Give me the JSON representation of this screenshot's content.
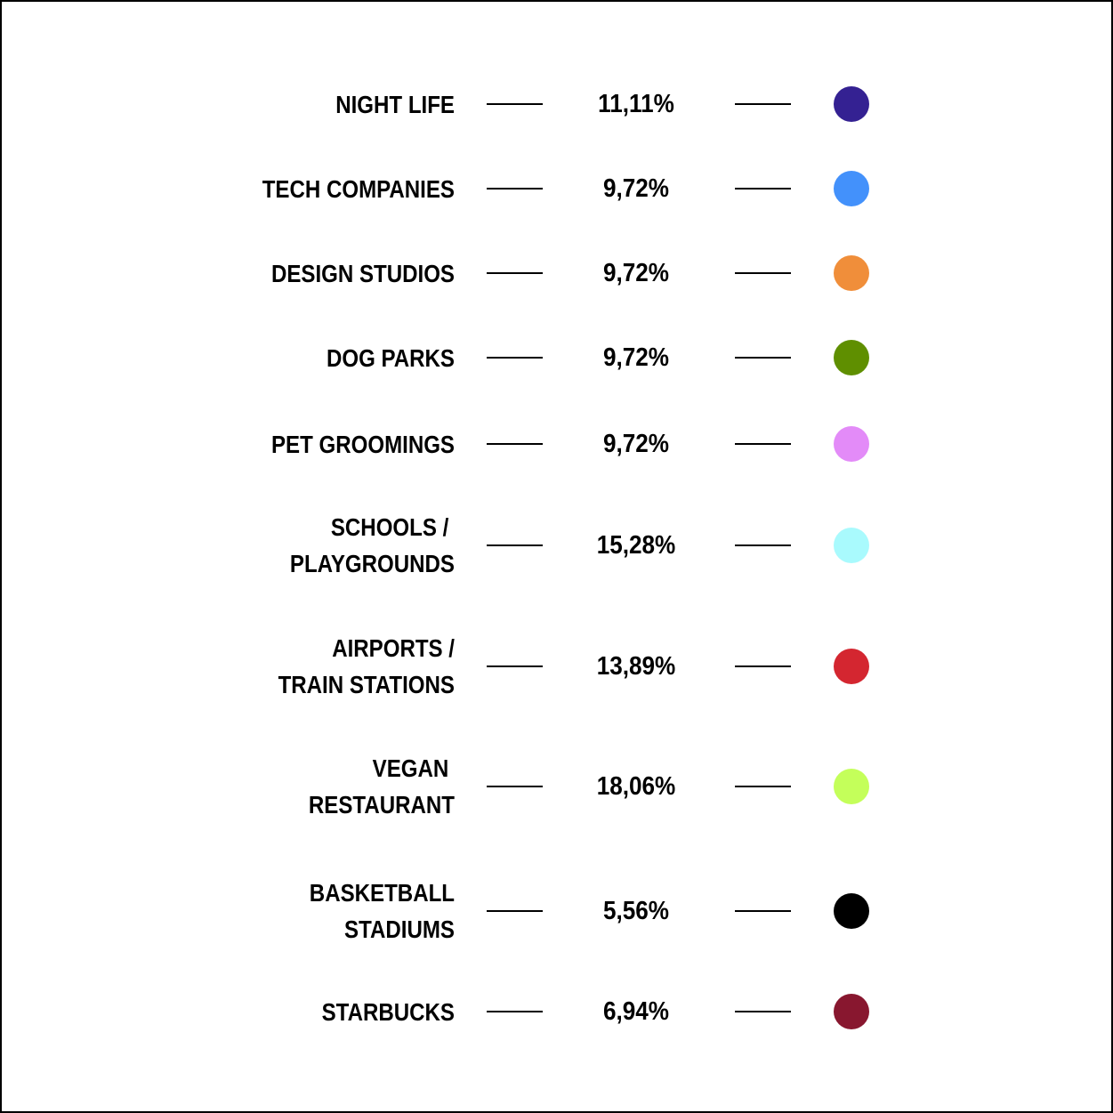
{
  "chart_data": {
    "type": "table",
    "rows": [
      {
        "label_lines": [
          "NIGHT LIFE"
        ],
        "value": 11.11,
        "value_label": "11,11%",
        "color": "#342192"
      },
      {
        "label_lines": [
          "TECH COMPANIES"
        ],
        "value": 9.72,
        "value_label": "9,72%",
        "color": "#4391FB"
      },
      {
        "label_lines": [
          "DESIGN STUDIOS"
        ],
        "value": 9.72,
        "value_label": "9,72%",
        "color": "#F08E3A"
      },
      {
        "label_lines": [
          "DOG PARKS"
        ],
        "value": 9.72,
        "value_label": "9,72%",
        "color": "#5F8F00"
      },
      {
        "label_lines": [
          "PET GROOMINGS"
        ],
        "value": 9.72,
        "value_label": "9,72%",
        "color": "#E38BF8"
      },
      {
        "label_lines": [
          "SCHOOLS / ",
          "PLAYGROUNDS"
        ],
        "value": 15.28,
        "value_label": "15,28%",
        "color": "#A9FAFD"
      },
      {
        "label_lines": [
          "AIRPORTS /",
          "TRAIN STATIONS"
        ],
        "value": 13.89,
        "value_label": "13,89%",
        "color": "#D42630"
      },
      {
        "label_lines": [
          "VEGAN ",
          "RESTAURANT"
        ],
        "value": 18.06,
        "value_label": "18,06%",
        "color": "#C4FF5A"
      },
      {
        "label_lines": [
          "BASKETBALL",
          "STADIUMS"
        ],
        "value": 5.56,
        "value_label": "5,56%",
        "color": "#000000"
      },
      {
        "label_lines": [
          "STARBUCKS"
        ],
        "value": 6.94,
        "value_label": "6,94%",
        "color": "#88172F"
      }
    ]
  }
}
